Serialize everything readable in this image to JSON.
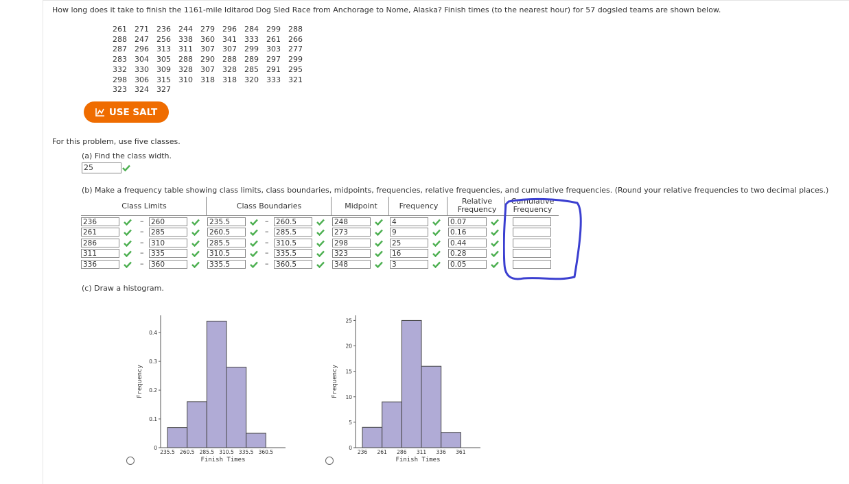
{
  "question": "How long does it take to finish the 1161-mile Iditarod Dog Sled Race from Anchorage to Nome, Alaska? Finish times (to the nearest hour) for 57 dogsled teams are shown below.",
  "dataset_rows": [
    [
      "261",
      "271",
      "236",
      "244",
      "279",
      "296",
      "284",
      "299",
      "288"
    ],
    [
      "288",
      "247",
      "256",
      "338",
      "360",
      "341",
      "333",
      "261",
      "266"
    ],
    [
      "287",
      "296",
      "313",
      "311",
      "307",
      "307",
      "299",
      "303",
      "277"
    ],
    [
      "283",
      "304",
      "305",
      "288",
      "290",
      "288",
      "289",
      "297",
      "299"
    ],
    [
      "332",
      "330",
      "309",
      "328",
      "307",
      "328",
      "285",
      "291",
      "295"
    ],
    [
      "298",
      "306",
      "315",
      "310",
      "318",
      "318",
      "320",
      "333",
      "321"
    ],
    [
      "323",
      "324",
      "327"
    ]
  ],
  "salt_button": "USE SALT",
  "instruction": "For this problem, use five classes.",
  "part_a": {
    "prompt": "(a) Find the class width.",
    "answer": "25"
  },
  "part_b": {
    "prompt": "(b) Make a frequency table showing class limits, class boundaries, midpoints, frequencies, relative frequencies, and cumulative frequencies. (Round your relative frequencies to two decimal places.)",
    "headers": {
      "class_limits": "Class Limits",
      "class_boundaries": "Class Boundaries",
      "midpoint": "Midpoint",
      "frequency": "Frequency",
      "relative_1": "Relative",
      "relative_2": "Frequency",
      "cumulative_1": "Cumulative",
      "cumulative_2": "Frequency"
    },
    "rows": [
      {
        "lower": "236",
        "upper": "260",
        "b_lower": "235.5",
        "b_upper": "260.5",
        "mid": "248",
        "freq": "4",
        "rel": "0.07",
        "cum": ""
      },
      {
        "lower": "261",
        "upper": "285",
        "b_lower": "260.5",
        "b_upper": "285.5",
        "mid": "273",
        "freq": "9",
        "rel": "0.16",
        "cum": ""
      },
      {
        "lower": "286",
        "upper": "310",
        "b_lower": "285.5",
        "b_upper": "310.5",
        "mid": "298",
        "freq": "25",
        "rel": "0.44",
        "cum": ""
      },
      {
        "lower": "311",
        "upper": "335",
        "b_lower": "310.5",
        "b_upper": "335.5",
        "mid": "323",
        "freq": "16",
        "rel": "0.28",
        "cum": ""
      },
      {
        "lower": "336",
        "upper": "360",
        "b_lower": "335.5",
        "b_upper": "360.5",
        "mid": "348",
        "freq": "3",
        "rel": "0.05",
        "cum": ""
      }
    ]
  },
  "part_c": {
    "prompt": "(c) Draw a histogram."
  },
  "chart_data": [
    {
      "type": "bar",
      "ylabel": "Frequency",
      "xlabel": "Finish Times",
      "x_ticks": [
        "235.5",
        "260.5",
        "285.5",
        "310.5",
        "335.5",
        "360.5"
      ],
      "y_ticks": [
        "0",
        "0.1",
        "0.2",
        "0.3",
        "0.4"
      ],
      "values": [
        0.07,
        0.16,
        0.44,
        0.28,
        0.05
      ],
      "ylim": [
        0,
        0.46
      ],
      "bar_color": "#b0abd6"
    },
    {
      "type": "bar",
      "ylabel": "Frequency",
      "xlabel": "Finish Times",
      "x_ticks": [
        "236",
        "261",
        "286",
        "311",
        "336",
        "361"
      ],
      "y_ticks": [
        "0",
        "5",
        "10",
        "15",
        "20",
        "25"
      ],
      "values": [
        4,
        9,
        25,
        16,
        3
      ],
      "ylim": [
        0,
        26
      ],
      "bar_color": "#b0abd6"
    }
  ],
  "colors": {
    "salt": "#ef6c00",
    "check": "#4caf50",
    "annotation": "#3b3fd0"
  },
  "icons": {
    "salt": "chart-line-icon",
    "check": "checkmark-icon"
  }
}
